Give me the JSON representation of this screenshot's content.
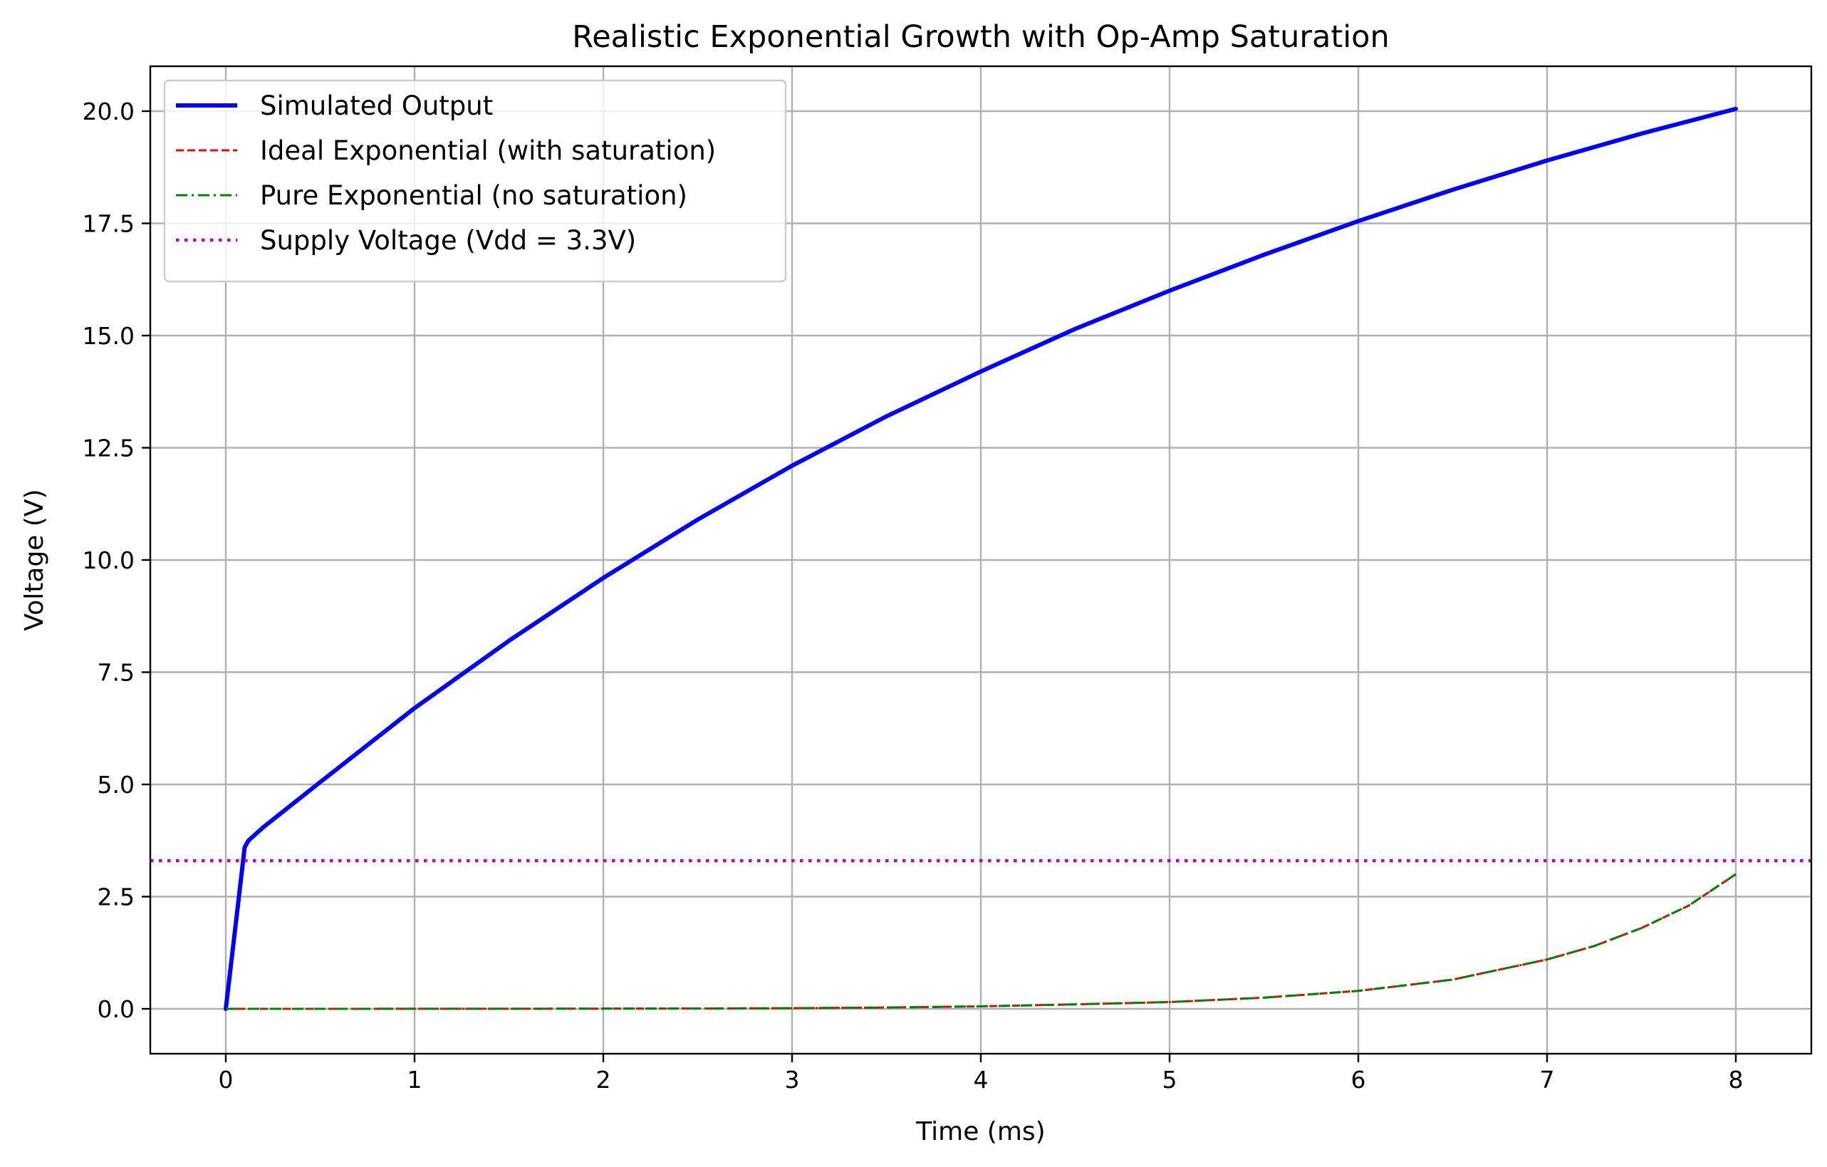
{
  "chart_data": {
    "type": "line",
    "title": "Realistic Exponential Growth with Op-Amp Saturation",
    "xlabel": "Time (ms)",
    "ylabel": "Voltage (V)",
    "xlim": [
      -0.4,
      8.4
    ],
    "ylim": [
      -1.0,
      21.0
    ],
    "xticks": [
      0,
      1,
      2,
      3,
      4,
      5,
      6,
      7,
      8
    ],
    "xtick_labels": [
      "0",
      "1",
      "2",
      "3",
      "4",
      "5",
      "6",
      "7",
      "8"
    ],
    "yticks": [
      0.0,
      2.5,
      5.0,
      7.5,
      10.0,
      12.5,
      15.0,
      17.5,
      20.0
    ],
    "ytick_labels": [
      "0.0",
      "2.5",
      "5.0",
      "7.5",
      "10.0",
      "12.5",
      "15.0",
      "17.5",
      "20.0"
    ],
    "grid": true,
    "legend_position": "top-left",
    "series": [
      {
        "name": "Simulated Output",
        "color": "#0000ff",
        "style": "solid",
        "x": [
          0,
          0.05,
          0.1,
          0.12,
          0.2,
          0.5,
          1,
          1.5,
          2,
          2.5,
          3,
          3.5,
          4,
          4.5,
          5,
          5.5,
          6,
          6.5,
          7,
          7.5,
          8
        ],
        "y": [
          0,
          1.8,
          3.6,
          3.75,
          4.05,
          5.05,
          6.7,
          8.2,
          9.6,
          10.9,
          12.1,
          13.2,
          14.2,
          15.15,
          16.0,
          16.8,
          17.55,
          18.25,
          18.9,
          19.5,
          20.05
        ]
      },
      {
        "name": "Ideal Exponential (with saturation)",
        "color": "#ff0000",
        "style": "dashed",
        "x": [
          0,
          0.5,
          1,
          1.5,
          2,
          2.5,
          3,
          3.5,
          4,
          4.5,
          5,
          5.5,
          6,
          6.5,
          7,
          7.25,
          7.5,
          7.75,
          8
        ],
        "y": [
          0.0,
          0.0,
          0.001,
          0.002,
          0.004,
          0.008,
          0.015,
          0.03,
          0.055,
          0.1,
          0.15,
          0.25,
          0.4,
          0.65,
          1.1,
          1.4,
          1.8,
          2.3,
          3.0
        ]
      },
      {
        "name": "Pure Exponential (no saturation)",
        "color": "#008000",
        "style": "dashdot",
        "x": [
          0,
          0.5,
          1,
          1.5,
          2,
          2.5,
          3,
          3.5,
          4,
          4.5,
          5,
          5.5,
          6,
          6.5,
          7,
          7.25,
          7.5,
          7.75,
          8
        ],
        "y": [
          0.0,
          0.0,
          0.001,
          0.002,
          0.004,
          0.008,
          0.015,
          0.03,
          0.055,
          0.1,
          0.15,
          0.25,
          0.4,
          0.65,
          1.1,
          1.4,
          1.8,
          2.3,
          3.0
        ]
      },
      {
        "name": "Supply Voltage (Vdd = 3.3V)",
        "color": "#bf00bf",
        "style": "dotted",
        "x": [
          -0.4,
          8.4
        ],
        "y": [
          3.3,
          3.3
        ]
      }
    ]
  }
}
